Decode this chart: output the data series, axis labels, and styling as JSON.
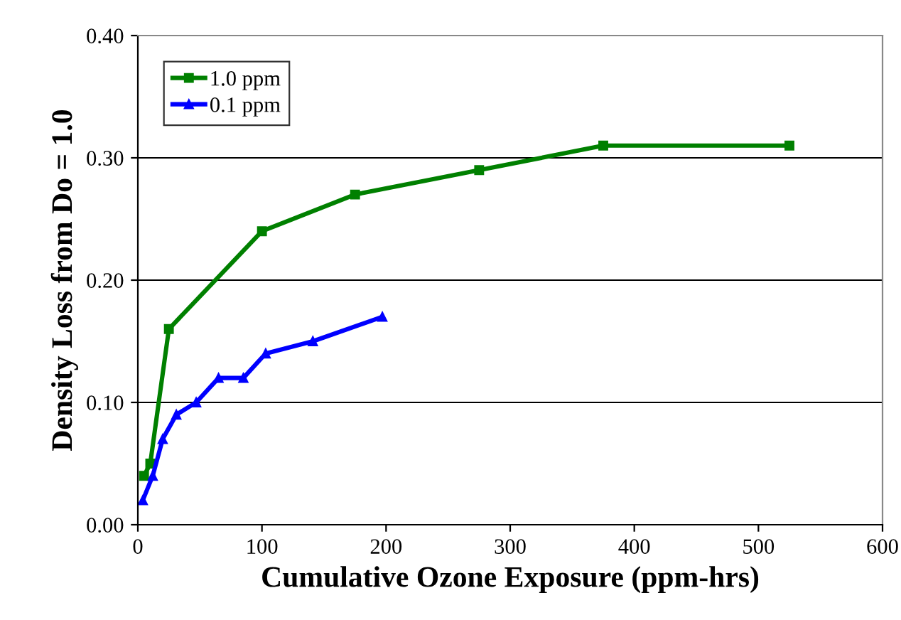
{
  "chart_data": {
    "type": "line",
    "xlabel": "Cumulative Ozone Exposure (ppm-hrs)",
    "ylabel": "Density Loss from Do = 1.0",
    "xlim": [
      0,
      600
    ],
    "xticks": [
      0,
      100,
      200,
      300,
      400,
      500,
      600
    ],
    "ylim": [
      0,
      0.4
    ],
    "yticks": [
      {
        "value": 0,
        "label": "0.00"
      },
      {
        "value": 0.1,
        "label": "0.10"
      },
      {
        "value": 0.2,
        "label": "0.20"
      },
      {
        "value": 0.3,
        "label": "0.30"
      },
      {
        "value": 0.4,
        "label": "0.40"
      }
    ],
    "grid": "y",
    "legend": "top left",
    "series": [
      {
        "name": "1.0 ppm",
        "color": "#008000",
        "marker": "square",
        "x": [
          5,
          10,
          25,
          100,
          175,
          275,
          375,
          525
        ],
        "values": [
          0.04,
          0.05,
          0.16,
          0.24,
          0.27,
          0.29,
          0.31,
          0.31
        ]
      },
      {
        "name": "0.1 ppm",
        "color": "#0000ff",
        "marker": "triangle",
        "x": [
          4,
          12,
          20,
          31,
          47,
          65,
          85,
          103,
          141,
          197
        ],
        "values": [
          0.02,
          0.04,
          0.07,
          0.09,
          0.1,
          0.12,
          0.12,
          0.14,
          0.15,
          0.17
        ]
      }
    ]
  }
}
